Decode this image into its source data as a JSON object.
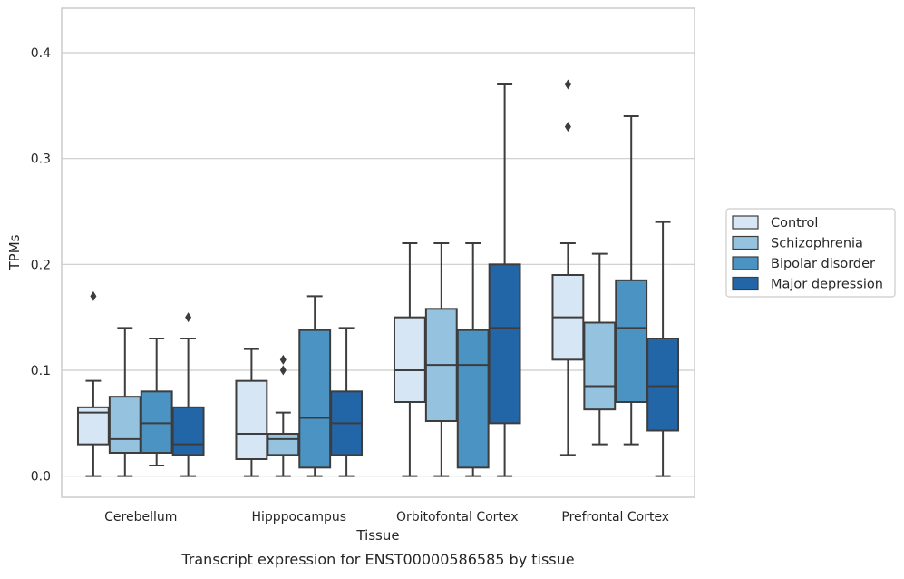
{
  "chart_data": {
    "type": "boxplot",
    "title": "Transcript expression for ENST00000586585 by tissue",
    "xlabel": "Tissue",
    "ylabel": "TPMs",
    "ylim": [
      -0.02,
      0.442
    ],
    "yticks": [
      "0.0",
      "0.1",
      "0.2",
      "0.3",
      "0.4"
    ],
    "ytick_values": [
      0.0,
      0.1,
      0.2,
      0.3,
      0.4
    ],
    "grid": "horizontal",
    "legend_position": "right",
    "categories": [
      "Cerebellum",
      "Hipppocampus",
      "Orbitofontal Cortex",
      "Prefrontal Cortex"
    ],
    "series": [
      {
        "name": "Control",
        "color": "#d6e6f4",
        "boxes": [
          {
            "whislo": 0.0,
            "q1": 0.03,
            "med": 0.06,
            "q3": 0.065,
            "whishi": 0.09,
            "fliers": [
              0.17
            ]
          },
          {
            "whislo": 0.0,
            "q1": 0.016,
            "med": 0.04,
            "q3": 0.09,
            "whishi": 0.12,
            "fliers": []
          },
          {
            "whislo": 0.0,
            "q1": 0.07,
            "med": 0.1,
            "q3": 0.15,
            "whishi": 0.22,
            "fliers": []
          },
          {
            "whislo": 0.02,
            "q1": 0.11,
            "med": 0.15,
            "q3": 0.19,
            "whishi": 0.22,
            "fliers": [
              0.37,
              0.33
            ]
          }
        ]
      },
      {
        "name": "Schizophrenia",
        "color": "#95c3df",
        "boxes": [
          {
            "whislo": 0.0,
            "q1": 0.022,
            "med": 0.035,
            "q3": 0.075,
            "whishi": 0.14,
            "fliers": []
          },
          {
            "whislo": 0.0,
            "q1": 0.02,
            "med": 0.035,
            "q3": 0.04,
            "whishi": 0.06,
            "fliers": [
              0.11,
              0.1
            ]
          },
          {
            "whislo": 0.0,
            "q1": 0.052,
            "med": 0.105,
            "q3": 0.158,
            "whishi": 0.22,
            "fliers": []
          },
          {
            "whislo": 0.03,
            "q1": 0.063,
            "med": 0.085,
            "q3": 0.145,
            "whishi": 0.21,
            "fliers": []
          }
        ]
      },
      {
        "name": "Bipolar disorder",
        "color": "#4a93c3",
        "boxes": [
          {
            "whislo": 0.01,
            "q1": 0.022,
            "med": 0.05,
            "q3": 0.08,
            "whishi": 0.13,
            "fliers": []
          },
          {
            "whislo": 0.0,
            "q1": 0.008,
            "med": 0.055,
            "q3": 0.138,
            "whishi": 0.17,
            "fliers": []
          },
          {
            "whislo": 0.0,
            "q1": 0.008,
            "med": 0.105,
            "q3": 0.138,
            "whishi": 0.22,
            "fliers": []
          },
          {
            "whislo": 0.03,
            "q1": 0.07,
            "med": 0.14,
            "q3": 0.185,
            "whishi": 0.34,
            "fliers": []
          }
        ]
      },
      {
        "name": "Major depression",
        "color": "#2366a8",
        "boxes": [
          {
            "whislo": 0.0,
            "q1": 0.02,
            "med": 0.03,
            "q3": 0.065,
            "whishi": 0.13,
            "fliers": [
              0.15
            ]
          },
          {
            "whislo": 0.0,
            "q1": 0.02,
            "med": 0.05,
            "q3": 0.08,
            "whishi": 0.14,
            "fliers": []
          },
          {
            "whislo": 0.0,
            "q1": 0.05,
            "med": 0.14,
            "q3": 0.2,
            "whishi": 0.37,
            "fliers": []
          },
          {
            "whislo": 0.0,
            "q1": 0.043,
            "med": 0.085,
            "q3": 0.13,
            "whishi": 0.24,
            "fliers": []
          }
        ]
      }
    ]
  },
  "colors": {
    "line": "#3d3d3d",
    "grid": "#cccccc",
    "frame": "#cccccc",
    "text": "#262626"
  }
}
